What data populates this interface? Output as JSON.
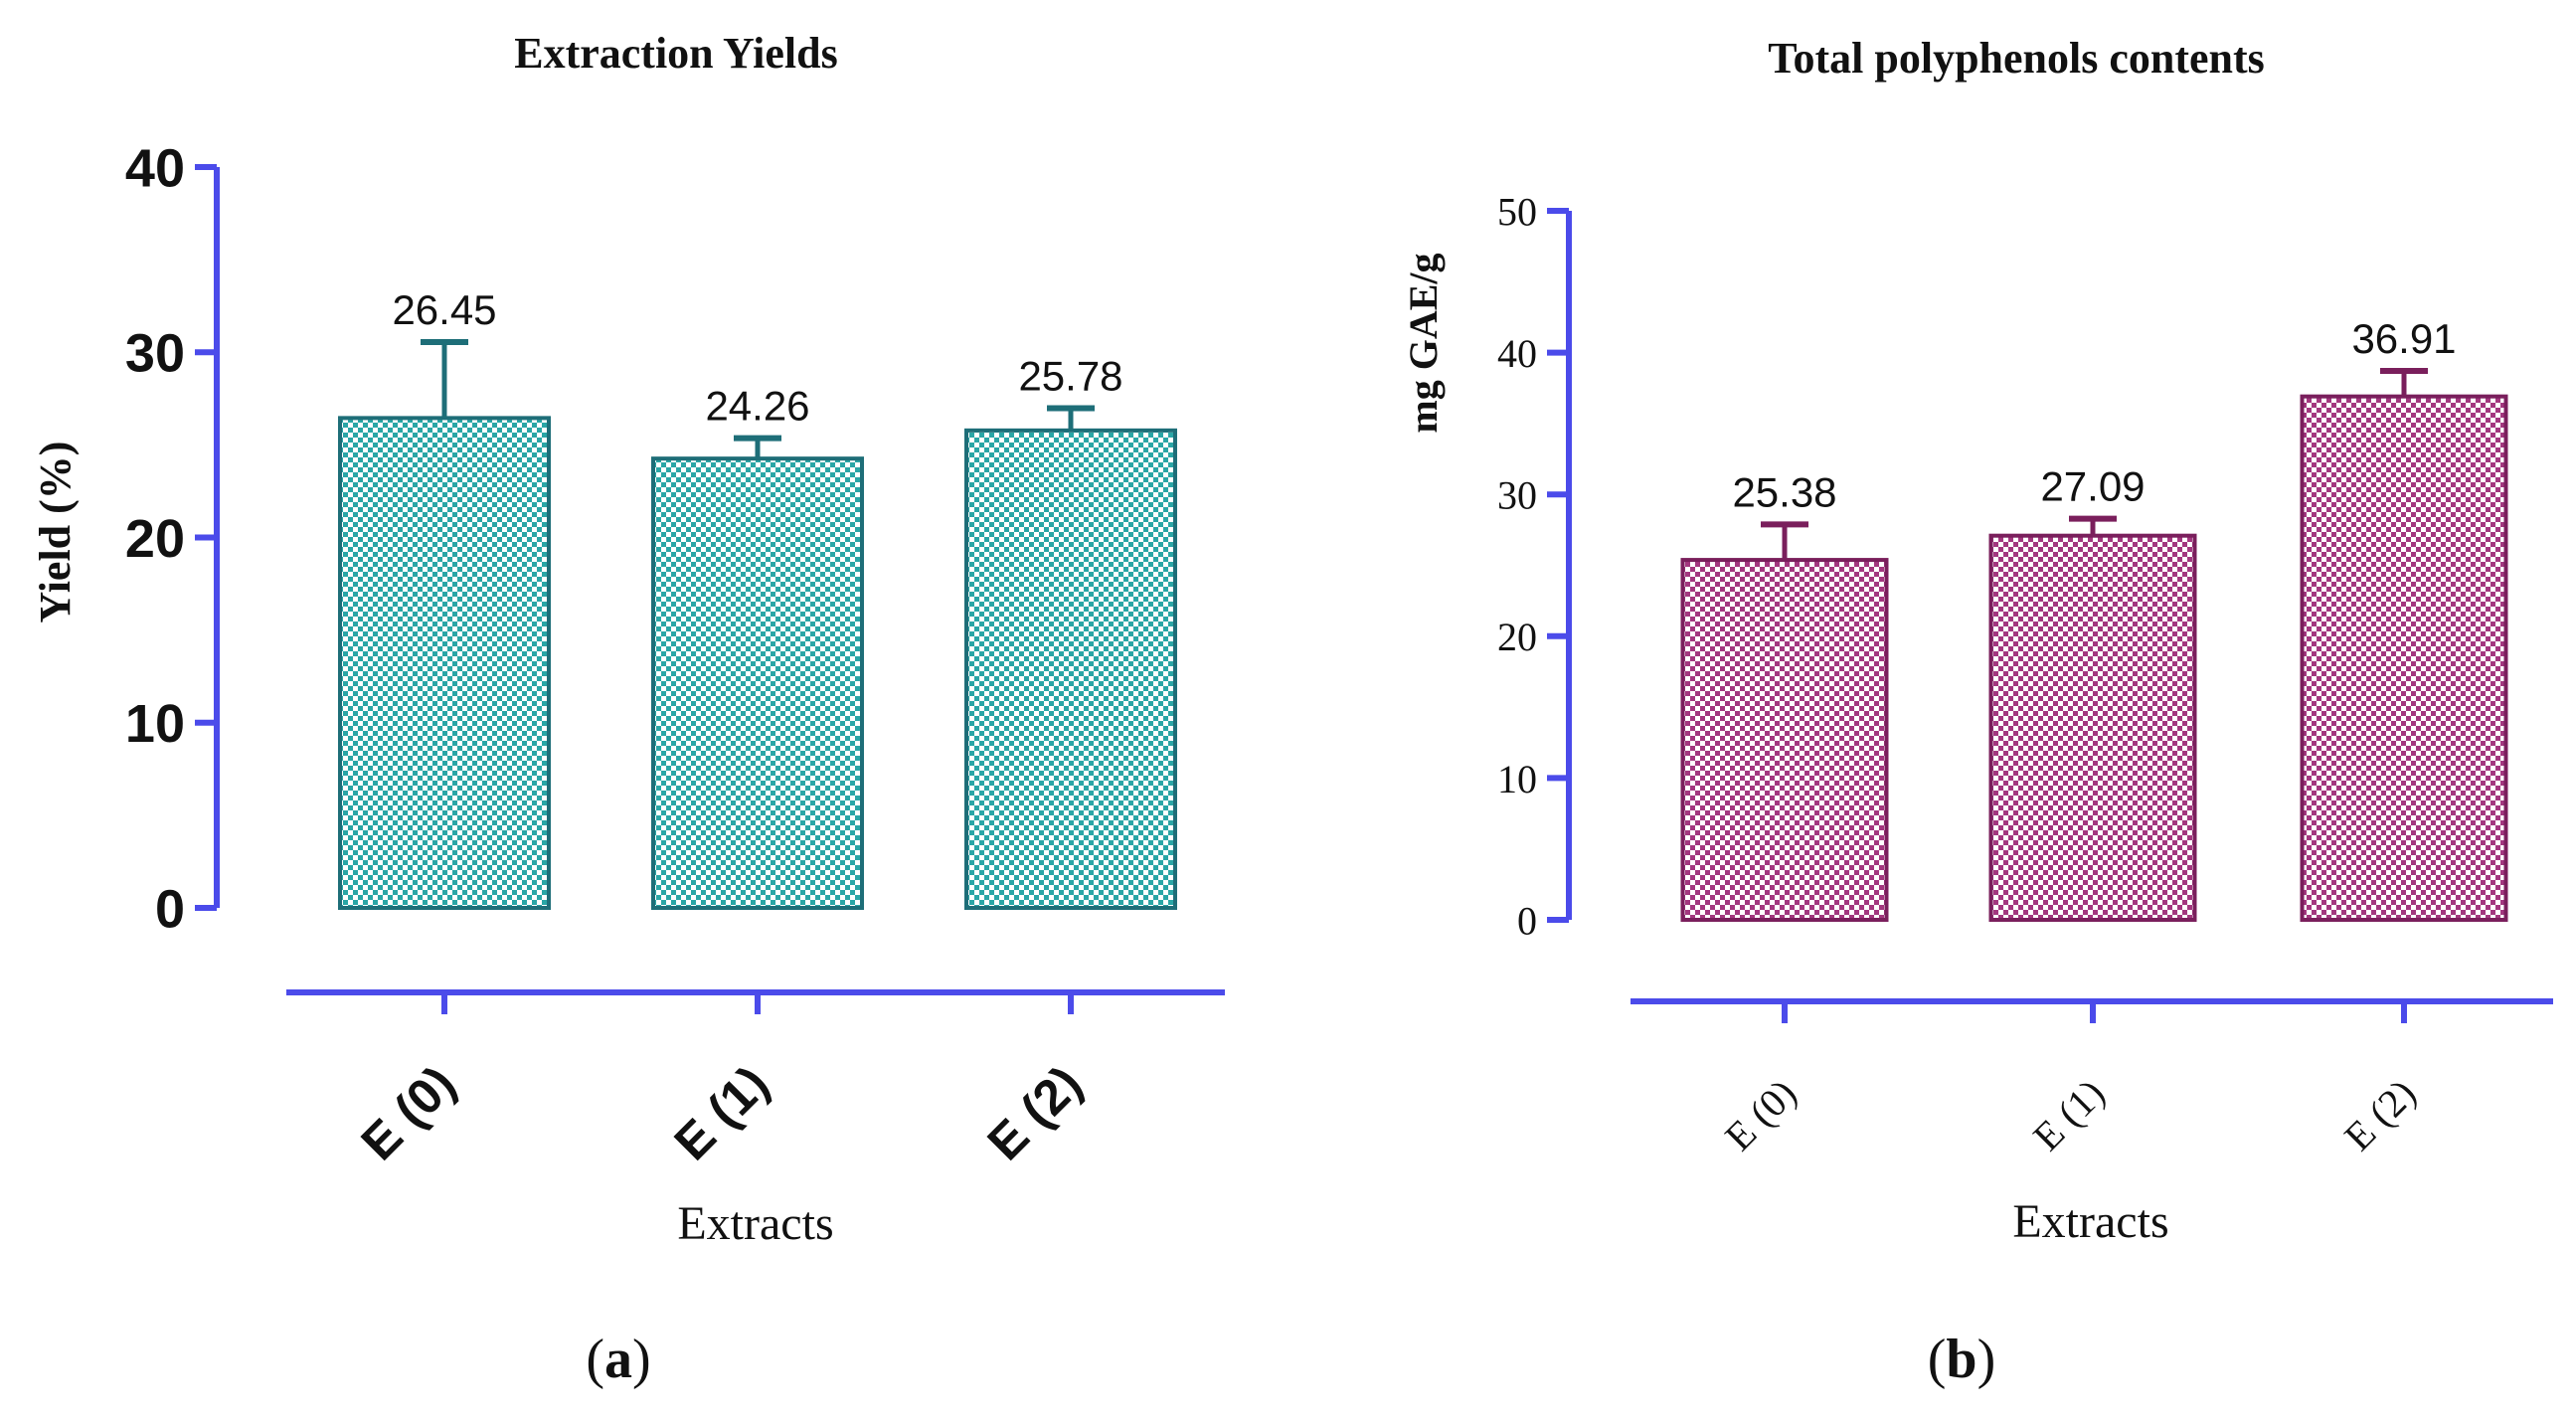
{
  "colors": {
    "axis": "#4B4BEA",
    "teal_fill": "#2AA6A6",
    "teal_stroke": "#1E6E78",
    "magenta_fill": "#A3377F",
    "magenta_stroke": "#7A1F5C",
    "text": "#111111"
  },
  "panels": [
    {
      "id": "a",
      "label_open": "(",
      "label_letter": "a",
      "label_close": ")"
    },
    {
      "id": "b",
      "label_open": "(",
      "label_letter": "b",
      "label_close": ")"
    }
  ],
  "chart_data": [
    {
      "type": "bar",
      "title": "Extraction Yields",
      "xlabel": "Extracts",
      "ylabel": "Yield (%)",
      "ylim": [
        0,
        40
      ],
      "yticks": [
        "0",
        "10",
        "20",
        "30",
        "40"
      ],
      "categories": [
        "E (0)",
        "E (1)",
        "E (2)"
      ],
      "values": [
        26.45,
        24.26,
        25.78
      ],
      "value_labels": [
        "26.45",
        "24.26",
        "25.78"
      ],
      "errors": [
        4.1,
        1.1,
        1.2
      ],
      "grid": false,
      "legend": "none"
    },
    {
      "type": "bar",
      "title": "Total polyphenols contents",
      "xlabel": "Extracts",
      "ylabel": "mg GAE/g",
      "ylim": [
        0,
        50
      ],
      "yticks": [
        "0",
        "10",
        "20",
        "30",
        "40",
        "50"
      ],
      "categories": [
        "E (0)",
        "E (1)",
        "E (2)"
      ],
      "values": [
        25.38,
        27.09,
        36.91
      ],
      "value_labels": [
        "25.38",
        "27.09",
        "36.91"
      ],
      "errors": [
        2.5,
        1.2,
        1.8
      ],
      "grid": false,
      "legend": "none"
    }
  ]
}
